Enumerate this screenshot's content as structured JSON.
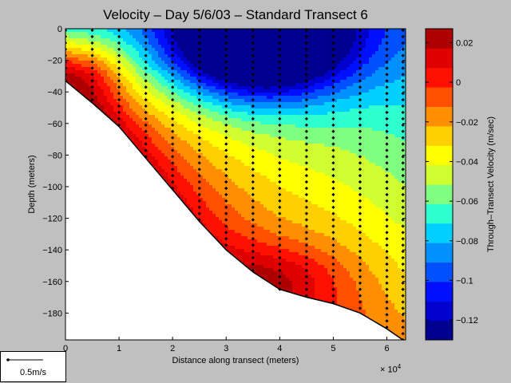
{
  "chart_data": {
    "type": "heatmap",
    "title": "Velocity – Day 5/6/03 – Standard Transect 6",
    "xlabel": "Distance along transect (meters)",
    "ylabel": "Depth (meters)",
    "x_exponent_base": "× 10",
    "x_exponent_power": "4",
    "xlim": [
      0,
      63500
    ],
    "ylim": [
      -197,
      0
    ],
    "x_ticks": [
      0,
      10000,
      20000,
      30000,
      40000,
      50000,
      60000
    ],
    "x_tick_labels": [
      "0",
      "1",
      "2",
      "3",
      "4",
      "5",
      "6"
    ],
    "y_ticks": [
      0,
      -20,
      -40,
      -60,
      -80,
      -100,
      -120,
      -140,
      -160,
      -180
    ],
    "y_tick_labels": [
      "0",
      "−20",
      "−40",
      "−60",
      "−80",
      "−100",
      "−120",
      "−140",
      "−160",
      "−180"
    ],
    "colorbar": {
      "label": "Through–Transect Velocity (m/sec)",
      "range": [
        -0.13,
        0.027
      ],
      "ticks": [
        0.02,
        0,
        -0.02,
        -0.04,
        -0.06,
        -0.08,
        -0.1,
        -0.12
      ],
      "tick_labels": [
        "0.02",
        "0",
        "−0.02",
        "−0.04",
        "−0.06",
        "−0.08",
        "−0.1",
        "−0.12"
      ],
      "colors": [
        "#00008f",
        "#0000cf",
        "#0010ff",
        "#0050ff",
        "#0090ff",
        "#00d0ff",
        "#30ffcf",
        "#80ff80",
        "#cfff30",
        "#ffff00",
        "#ffcf00",
        "#ff8f00",
        "#ff5000",
        "#ff1000",
        "#df0000",
        "#af0000"
      ]
    },
    "bottom_profile": [
      [
        0,
        -33
      ],
      [
        5000,
        -47
      ],
      [
        10000,
        -62
      ],
      [
        15000,
        -82
      ],
      [
        20000,
        -102
      ],
      [
        25000,
        -122
      ],
      [
        30000,
        -140
      ],
      [
        35000,
        -154
      ],
      [
        40000,
        -165
      ],
      [
        45000,
        -170
      ],
      [
        50000,
        -174
      ],
      [
        55000,
        -180
      ],
      [
        60000,
        -190
      ],
      [
        63000,
        -197
      ]
    ],
    "stations_x": [
      0,
      5000,
      10000,
      15000,
      20000,
      25000,
      30000,
      35000,
      40000,
      45000,
      50000,
      55000,
      60000,
      63000
    ],
    "velocity_field": {
      "surface_jet": {
        "center_x": 36000,
        "center_depth": -8,
        "peak": -0.125
      },
      "deep_core": {
        "center_x": 40000,
        "center_depth": -158,
        "peak": 0.025
      },
      "shallow_core": {
        "center_x": 5000,
        "center_depth": -28,
        "peak": 0.02
      }
    }
  },
  "scale_vector": {
    "label": "0.5m/s"
  }
}
